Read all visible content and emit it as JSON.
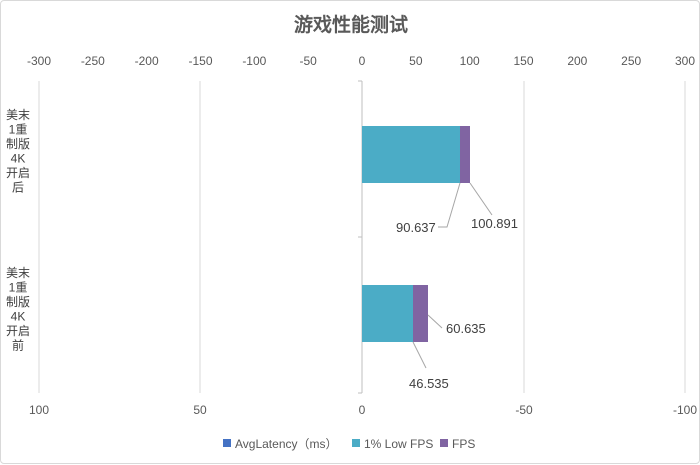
{
  "chart_data": {
    "type": "bar",
    "orientation": "horizontal",
    "stacked": true,
    "title": "游戏性能测试",
    "categories": [
      "美末1重制版4K开启后",
      "美末1重制版4K开启前"
    ],
    "series": [
      {
        "name": "AvgLatency（ms）",
        "color": "#4472c4",
        "values": [
          null,
          null
        ],
        "axis": "secondary"
      },
      {
        "name": "1% Low FPS",
        "color": "#4bacc6",
        "values": [
          90.637,
          46.535
        ],
        "axis": "primary"
      },
      {
        "name": "FPS",
        "color": "#8064a2",
        "values": [
          100.891,
          60.635
        ],
        "axis": "primary"
      }
    ],
    "primary_axis": {
      "position": "top",
      "min": -300,
      "max": 300,
      "ticks": [
        -300,
        -250,
        -200,
        -150,
        -100,
        -50,
        0,
        50,
        100,
        150,
        200,
        250,
        300
      ]
    },
    "secondary_axis": {
      "position": "bottom",
      "reversed": true,
      "min": -100,
      "max": 100,
      "tick_labels": [
        "100",
        "50",
        "0",
        "-50",
        "-100"
      ]
    },
    "data_labels": [
      "90.637",
      "100.891",
      "60.635",
      "46.535"
    ],
    "legend": "bottom",
    "grid": true
  }
}
